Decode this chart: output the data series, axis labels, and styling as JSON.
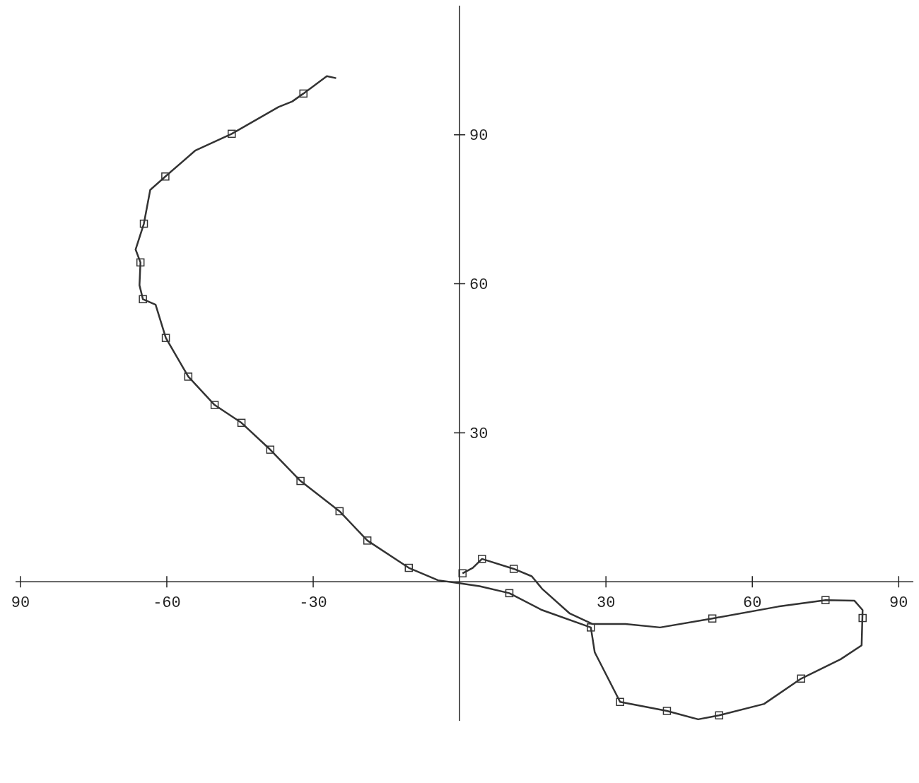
{
  "chart_data": {
    "type": "line",
    "xlim": [
      -91,
      93
    ],
    "ylim": [
      -28,
      116
    ],
    "xticks": [
      {
        "value": -90,
        "label": "90"
      },
      -60,
      -30,
      30,
      60,
      90
    ],
    "yticks": [
      30,
      60,
      90
    ],
    "grid": false,
    "series": [
      {
        "color": "#333333",
        "marker": "none",
        "line_style": "solid",
        "x": [
          -25.3,
          -27.2,
          -32.0,
          -34.3,
          -37.1,
          -46.7,
          -54.2,
          -60.3,
          -63.4,
          -64.7,
          -66.4,
          -65.4,
          -65.6,
          -64.9,
          -62.3,
          -60.2,
          -55.6,
          -50.2,
          -44.7,
          -38.8,
          -32.6,
          -24.6,
          -18.9,
          -10.4,
          -4.4,
          -0.1,
          4.1,
          10.2,
          16.9,
          26.9,
          27.7,
          32.9,
          42.5,
          48.9,
          53.2,
          62.4,
          70.0,
          78.1,
          82.4,
          82.6,
          80.9,
          75.0,
          65.3,
          51.8,
          41.1,
          34.0,
          27.2,
          22.6,
          16.9,
          14.8,
          11.1,
          4.6,
          2.7,
          0.6
        ],
        "values": [
          101.4,
          101.8,
          98.3,
          96.7,
          95.6,
          90.2,
          86.8,
          81.6,
          78.9,
          72.1,
          66.9,
          64.3,
          59.7,
          56.9,
          55.8,
          49.1,
          41.3,
          35.6,
          32.0,
          26.6,
          20.3,
          14.2,
          8.3,
          2.8,
          0.3,
          -0.3,
          -0.9,
          -2.3,
          -5.7,
          -9.2,
          -14.2,
          -24.2,
          -26.0,
          -27.7,
          -26.9,
          -24.6,
          -19.5,
          -15.6,
          -12.8,
          -5.7,
          -3.8,
          -3.7,
          -5.0,
          -7.4,
          -9.2,
          -8.5,
          -8.5,
          -6.4,
          -1.4,
          1.1,
          2.6,
          4.6,
          2.8,
          1.7
        ]
      },
      {
        "type": "scatter",
        "color": "#333333",
        "marker": "square",
        "x": [
          -32.0,
          -46.7,
          -60.3,
          -64.7,
          -65.4,
          -64.9,
          -60.2,
          -55.6,
          -50.2,
          -44.7,
          -38.8,
          -32.6,
          -24.6,
          -18.9,
          -10.4,
          10.2,
          26.9,
          32.9,
          42.5,
          53.2,
          70.0,
          82.6,
          75.0,
          51.8,
          11.1,
          4.6,
          0.6
        ],
        "values": [
          98.3,
          90.2,
          81.6,
          72.1,
          64.3,
          56.9,
          49.1,
          41.3,
          35.6,
          32.0,
          26.6,
          20.3,
          14.2,
          8.3,
          2.8,
          -2.3,
          -9.2,
          -24.2,
          -26.0,
          -26.9,
          -19.5,
          -7.3,
          -3.7,
          -7.4,
          2.6,
          4.6,
          1.7
        ]
      }
    ]
  }
}
